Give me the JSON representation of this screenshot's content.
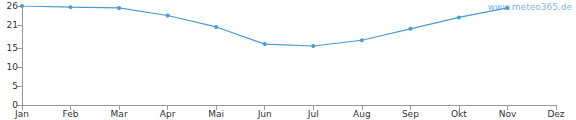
{
  "chart_data": {
    "type": "line",
    "annotation": "www.meteo365.de",
    "categories": [
      "Jan",
      "Feb",
      "Mar",
      "Apr",
      "Mai",
      "Jun",
      "Jul",
      "Aug",
      "Sep",
      "Okt",
      "Nov",
      "Dez"
    ],
    "values": [
      26,
      25.7,
      25.5,
      23.5,
      20.5,
      16,
      15.5,
      17,
      20,
      23,
      25.5,
      null
    ],
    "color": "#4a9bd4",
    "marker": "circle",
    "ylim": [
      0,
      26
    ],
    "yticks": [
      0,
      5,
      10,
      15,
      21,
      26
    ],
    "grid": false
  }
}
